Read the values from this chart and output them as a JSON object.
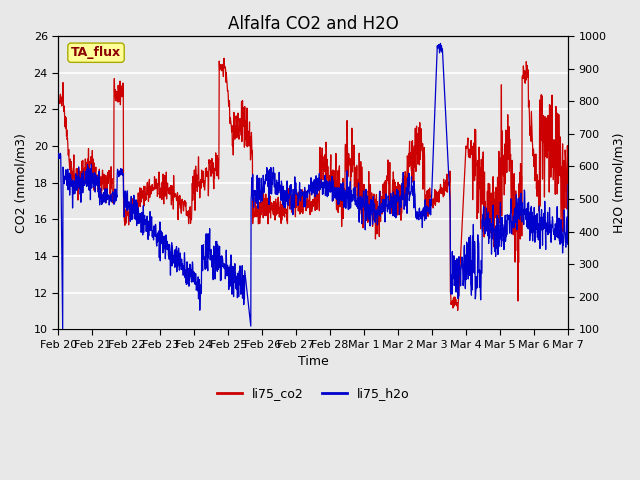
{
  "title": "Alfalfa CO2 and H2O",
  "xlabel": "Time",
  "ylabel_left": "CO2 (mmol/m3)",
  "ylabel_right": "H2O (mmol/m3)",
  "ylim_left": [
    10,
    26
  ],
  "ylim_right": [
    100,
    1000
  ],
  "yticks_left": [
    10,
    12,
    14,
    16,
    18,
    20,
    22,
    24,
    26
  ],
  "yticks_right": [
    100,
    200,
    300,
    400,
    500,
    600,
    700,
    800,
    900,
    1000
  ],
  "annotation_text": "TA_flux",
  "annotation_color": "#8B0000",
  "annotation_bg": "#FFFF99",
  "annotation_edge": "#AAAA00",
  "co2_color": "#CC0000",
  "h2o_color": "#0000CC",
  "fig_facecolor": "#E8E8E8",
  "plot_facecolor": "#E8E8E8",
  "grid_color": "white",
  "legend_co2": "li75_co2",
  "legend_h2o": "li75_h2o",
  "xtick_labels": [
    "Feb 20",
    "Feb 21",
    "Feb 22",
    "Feb 23",
    "Feb 24",
    "Feb 25",
    "Feb 26",
    "Feb 27",
    "Feb 28",
    "Mar 1",
    "Mar 2",
    "Mar 3",
    "Mar 4",
    "Mar 5",
    "Mar 6",
    "Mar 7"
  ],
  "title_fontsize": 12,
  "axis_label_fontsize": 9,
  "tick_fontsize": 8,
  "legend_fontsize": 9,
  "annotation_fontsize": 9,
  "linewidth": 0.9
}
